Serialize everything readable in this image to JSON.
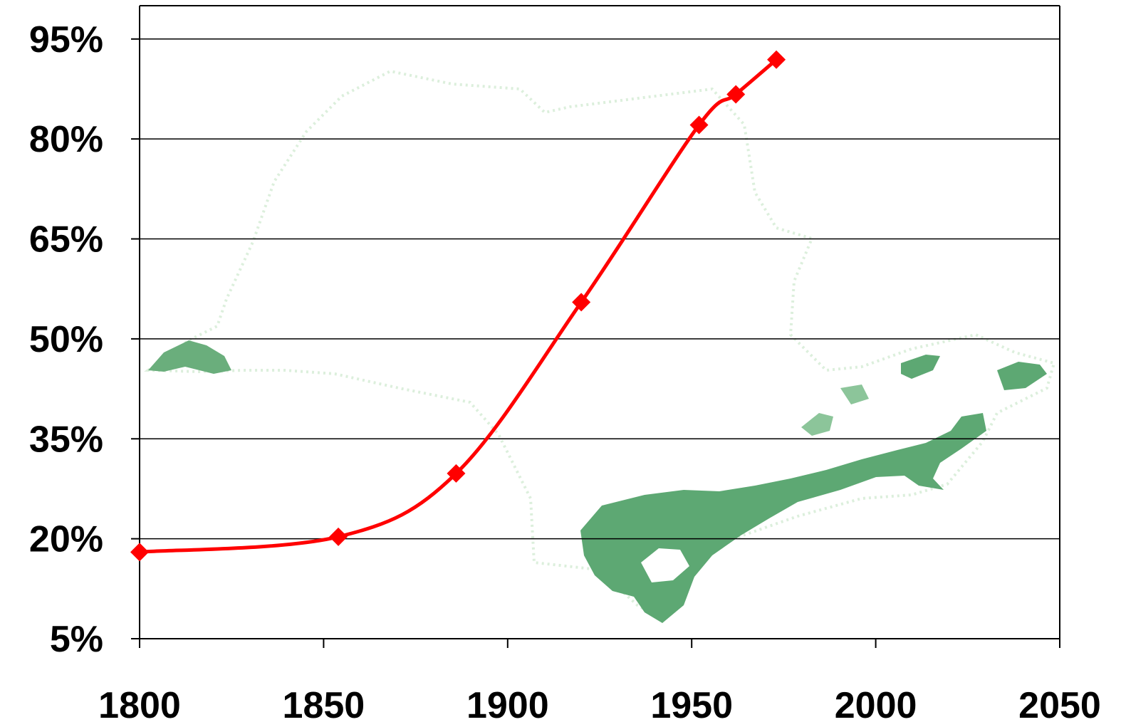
{
  "chart_data": {
    "type": "line",
    "title": "",
    "xlabel": "",
    "ylabel": "",
    "xlim": [
      1800,
      2050
    ],
    "ylim": [
      5,
      100
    ],
    "x_ticks": [
      1800,
      1850,
      1900,
      1950,
      2000,
      2050
    ],
    "x_tick_labels": [
      "1800",
      "1850",
      "1900",
      "1950",
      "2000",
      "2050"
    ],
    "y_ticks": [
      5,
      20,
      35,
      50,
      65,
      80,
      95
    ],
    "y_tick_labels": [
      "5%",
      "20%",
      "35%",
      "50%",
      "65%",
      "80%",
      "95%"
    ],
    "grid": "horizontal",
    "background_image": "map of São Paulo state with forest cover shaded in green",
    "series": [
      {
        "color": "#ff0000",
        "marker": "diamond",
        "points": [
          {
            "x": 1800,
            "y": 18
          },
          {
            "x": 1854,
            "y": 20.3
          },
          {
            "x": 1886,
            "y": 29.8
          },
          {
            "x": 1920,
            "y": 55.5
          },
          {
            "x": 1952,
            "y": 82.1
          },
          {
            "x": 1962,
            "y": 86.7
          },
          {
            "x": 1973,
            "y": 91.9
          }
        ]
      }
    ]
  }
}
